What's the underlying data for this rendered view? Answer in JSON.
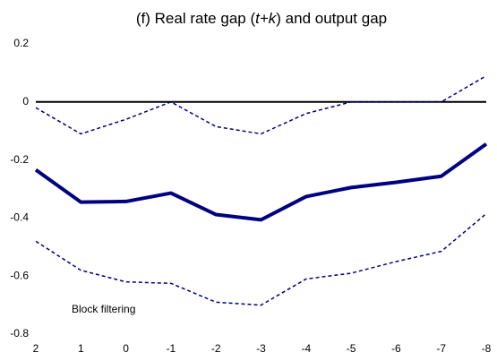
{
  "chart_data": {
    "type": "line",
    "title_parts": [
      "(f) Real rate gap (",
      "t+k",
      ") and output gap"
    ],
    "annotation": "Block filtering",
    "x": [
      2,
      1,
      0,
      -1,
      -2,
      -3,
      -4,
      -5,
      -6,
      -7,
      -8
    ],
    "xlim": [
      2,
      -8
    ],
    "xticks": [
      2,
      1,
      0,
      -1,
      -2,
      -3,
      -4,
      -5,
      -6,
      -7,
      -8
    ],
    "ylim": [
      -0.8,
      0.2
    ],
    "yticks": [
      0.2,
      0,
      -0.2,
      -0.4,
      -0.6,
      -0.8
    ],
    "reference_line": 0,
    "series": [
      {
        "color": "#000080",
        "style": "solid",
        "width": 4,
        "values": [
          -0.234,
          -0.345,
          -0.343,
          -0.314,
          -0.388,
          -0.406,
          -0.326,
          -0.295,
          -0.277,
          -0.256,
          -0.145
        ]
      },
      {
        "color": "#000080",
        "style": "dashed",
        "width": 1.5,
        "values": [
          -0.02,
          -0.11,
          -0.06,
          0.0,
          -0.085,
          -0.11,
          -0.04,
          0.0,
          0.0,
          0.0,
          0.09
        ]
      },
      {
        "color": "#000080",
        "style": "dashed",
        "width": 1.5,
        "values": [
          -0.48,
          -0.58,
          -0.62,
          -0.625,
          -0.69,
          -0.7,
          -0.61,
          -0.59,
          -0.55,
          -0.515,
          -0.385
        ]
      }
    ]
  }
}
